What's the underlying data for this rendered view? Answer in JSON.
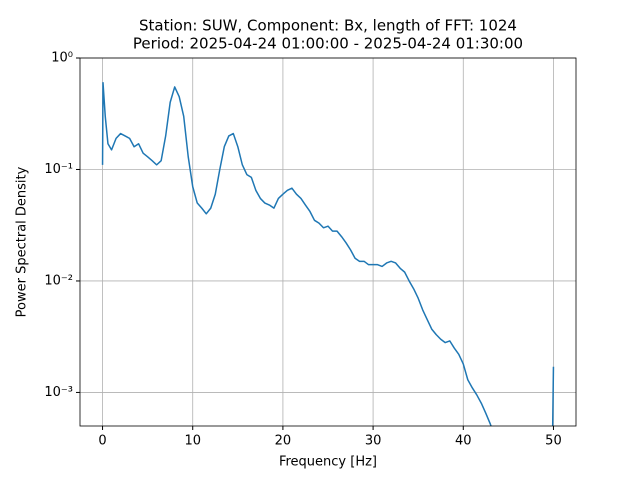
{
  "chart_data": {
    "type": "line",
    "title": "Station: SUW, Component: Bx, length of FFT: 1024",
    "subtitle": "Period: 2025-04-24 01:00:00 - 2025-04-24 01:30:00",
    "x_label": "Frequency [Hz]",
    "y_label": "Power Spectral Density",
    "x": [
      0.0,
      0.05,
      0.3,
      0.6,
      1.0,
      1.5,
      2.0,
      2.5,
      3.0,
      3.5,
      4.0,
      4.5,
      5.0,
      5.5,
      6.0,
      6.5,
      7.0,
      7.5,
      8.0,
      8.5,
      9.0,
      9.5,
      10.0,
      10.5,
      11.0,
      11.5,
      12.0,
      12.5,
      13.0,
      13.5,
      14.0,
      14.5,
      15.0,
      15.5,
      16.0,
      16.5,
      17.0,
      17.5,
      18.0,
      18.5,
      19.0,
      19.5,
      20.0,
      20.5,
      21.0,
      21.5,
      22.0,
      22.5,
      23.0,
      23.5,
      24.0,
      24.5,
      25.0,
      25.5,
      26.0,
      26.5,
      27.0,
      27.5,
      28.0,
      28.5,
      29.0,
      29.5,
      30.0,
      30.5,
      31.0,
      31.5,
      32.0,
      32.5,
      33.0,
      33.5,
      34.0,
      34.5,
      35.0,
      35.5,
      36.0,
      36.5,
      37.0,
      37.5,
      38.0,
      38.5,
      39.0,
      39.5,
      40.0,
      40.5,
      41.0,
      41.5,
      42.0,
      42.5,
      43.0,
      43.5,
      49.9,
      50.0
    ],
    "series": [
      {
        "name": "Bx",
        "color": "#1f77b4",
        "values": [
          0.11,
          0.6,
          0.3,
          0.17,
          0.15,
          0.19,
          0.21,
          0.2,
          0.19,
          0.16,
          0.17,
          0.14,
          0.13,
          0.12,
          0.11,
          0.12,
          0.2,
          0.4,
          0.55,
          0.45,
          0.3,
          0.13,
          0.07,
          0.05,
          0.045,
          0.04,
          0.045,
          0.06,
          0.1,
          0.16,
          0.2,
          0.21,
          0.16,
          0.11,
          0.09,
          0.085,
          0.065,
          0.055,
          0.05,
          0.048,
          0.045,
          0.055,
          0.06,
          0.065,
          0.068,
          0.06,
          0.055,
          0.048,
          0.042,
          0.035,
          0.033,
          0.03,
          0.031,
          0.028,
          0.028,
          0.025,
          0.022,
          0.019,
          0.016,
          0.015,
          0.015,
          0.014,
          0.014,
          0.014,
          0.0135,
          0.0145,
          0.015,
          0.0145,
          0.013,
          0.012,
          0.01,
          0.0085,
          0.007,
          0.0055,
          0.0045,
          0.0037,
          0.0033,
          0.003,
          0.0028,
          0.0029,
          0.0025,
          0.0022,
          0.0018,
          0.0013,
          0.0011,
          0.00095,
          0.0008,
          0.00065,
          0.00052,
          0.0004,
          0.0004,
          0.0017
        ]
      }
    ],
    "xlim": [
      -2.5,
      52.5
    ],
    "xticks": [
      0,
      10,
      20,
      30,
      40,
      50
    ],
    "ylim": [
      0.0005,
      1
    ],
    "log_y": true,
    "yticks": [
      {
        "value": 0.001,
        "label": "10⁻³"
      },
      {
        "value": 0.01,
        "label": "10⁻²"
      },
      {
        "value": 0.1,
        "label": "10⁻¹"
      },
      {
        "value": 1,
        "label": "10⁰"
      }
    ],
    "grid": true
  }
}
